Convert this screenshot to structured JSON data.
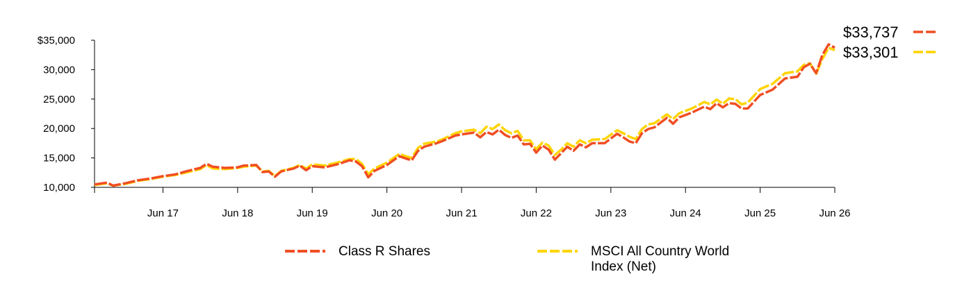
{
  "colors": {
    "series1": "#f04e23",
    "series2": "#ffd400",
    "axis": "#000000"
  },
  "chart_data": {
    "type": "line",
    "title": "",
    "xlabel": "",
    "ylabel": "",
    "ylim": [
      10000,
      35000
    ],
    "y_ticks": [
      {
        "value": 10000,
        "label": "10,000"
      },
      {
        "value": 15000,
        "label": "15,000"
      },
      {
        "value": 20000,
        "label": "20,000"
      },
      {
        "value": 25000,
        "label": "25,000"
      },
      {
        "value": 30000,
        "label": "30,000"
      },
      {
        "value": 35000,
        "label": "$35,000"
      }
    ],
    "x_range": [
      "2016-07",
      "2026-06"
    ],
    "x_ticks": [
      {
        "date": "2017-06",
        "label": "Jun 17"
      },
      {
        "date": "2018-06",
        "label": "Jun 18"
      },
      {
        "date": "2019-06",
        "label": "Jun 19"
      },
      {
        "date": "2020-06",
        "label": "Jun 20"
      },
      {
        "date": "2021-06",
        "label": "Jun 21"
      },
      {
        "date": "2022-06",
        "label": "Jun 22"
      },
      {
        "date": "2023-06",
        "label": "Jun 23"
      },
      {
        "date": "2024-06",
        "label": "Jun 24"
      },
      {
        "date": "2025-06",
        "label": "Jun 25"
      },
      {
        "date": "2026-06",
        "label": "Jun 26"
      }
    ],
    "series": [
      {
        "name": "Class R Shares",
        "color": "#f04e23",
        "end_label": "$33,737",
        "points": [
          [
            "2016-07",
            10500
          ],
          [
            "2016-09",
            10800
          ],
          [
            "2016-10",
            10300
          ],
          [
            "2016-12",
            10700
          ],
          [
            "2017-02",
            11200
          ],
          [
            "2017-04",
            11500
          ],
          [
            "2017-06",
            11900
          ],
          [
            "2017-08",
            12200
          ],
          [
            "2017-10",
            12800
          ],
          [
            "2017-12",
            13300
          ],
          [
            "2018-01",
            14000
          ],
          [
            "2018-02",
            13500
          ],
          [
            "2018-04",
            13300
          ],
          [
            "2018-06",
            13400
          ],
          [
            "2018-07",
            13700
          ],
          [
            "2018-09",
            13800
          ],
          [
            "2018-10",
            12600
          ],
          [
            "2018-11",
            12700
          ],
          [
            "2018-12",
            11800
          ],
          [
            "2019-01",
            12700
          ],
          [
            "2019-03",
            13200
          ],
          [
            "2019-04",
            13700
          ],
          [
            "2019-05",
            12900
          ],
          [
            "2019-06",
            13600
          ],
          [
            "2019-08",
            13400
          ],
          [
            "2019-10",
            13900
          ],
          [
            "2019-12",
            14600
          ],
          [
            "2020-01",
            14400
          ],
          [
            "2020-02",
            13600
          ],
          [
            "2020-03",
            11700
          ],
          [
            "2020-04",
            12800
          ],
          [
            "2020-06",
            13800
          ],
          [
            "2020-08",
            15300
          ],
          [
            "2020-09",
            14900
          ],
          [
            "2020-10",
            14600
          ],
          [
            "2020-11",
            16200
          ],
          [
            "2020-12",
            16900
          ],
          [
            "2021-02",
            17500
          ],
          [
            "2021-03",
            17900
          ],
          [
            "2021-05",
            18800
          ],
          [
            "2021-06",
            19000
          ],
          [
            "2021-08",
            19300
          ],
          [
            "2021-09",
            18500
          ],
          [
            "2021-10",
            19400
          ],
          [
            "2021-11",
            19000
          ],
          [
            "2021-12",
            19800
          ],
          [
            "2022-01",
            18900
          ],
          [
            "2022-02",
            18400
          ],
          [
            "2022-03",
            18800
          ],
          [
            "2022-04",
            17300
          ],
          [
            "2022-05",
            17400
          ],
          [
            "2022-06",
            15900
          ],
          [
            "2022-07",
            17100
          ],
          [
            "2022-08",
            16400
          ],
          [
            "2022-09",
            14700
          ],
          [
            "2022-10",
            15800
          ],
          [
            "2022-11",
            16900
          ],
          [
            "2022-12",
            16200
          ],
          [
            "2023-01",
            17300
          ],
          [
            "2023-02",
            16800
          ],
          [
            "2023-03",
            17500
          ],
          [
            "2023-05",
            17500
          ],
          [
            "2023-07",
            19100
          ],
          [
            "2023-08",
            18500
          ],
          [
            "2023-09",
            17800
          ],
          [
            "2023-10",
            17500
          ],
          [
            "2023-11",
            19200
          ],
          [
            "2023-12",
            19900
          ],
          [
            "2024-01",
            20200
          ],
          [
            "2024-03",
            21800
          ],
          [
            "2024-04",
            20800
          ],
          [
            "2024-05",
            21900
          ],
          [
            "2024-07",
            22700
          ],
          [
            "2024-09",
            23700
          ],
          [
            "2024-10",
            23300
          ],
          [
            "2024-11",
            24300
          ],
          [
            "2024-12",
            23600
          ],
          [
            "2025-01",
            24300
          ],
          [
            "2025-02",
            24200
          ],
          [
            "2025-03",
            23400
          ],
          [
            "2025-04",
            23400
          ],
          [
            "2025-06",
            25700
          ],
          [
            "2025-08",
            26600
          ],
          [
            "2025-10",
            28500
          ],
          [
            "2025-12",
            28800
          ],
          [
            "2026-01",
            30400
          ],
          [
            "2026-02",
            31000
          ],
          [
            "2026-03",
            29400
          ],
          [
            "2026-04",
            32500
          ],
          [
            "2026-05",
            34300
          ],
          [
            "2026-06",
            33737
          ]
        ]
      },
      {
        "name": "MSCI All Country World Index (Net)",
        "color": "#ffd400",
        "end_label": "$33,301",
        "points": [
          [
            "2016-07",
            10400
          ],
          [
            "2016-09",
            10700
          ],
          [
            "2016-10",
            10300
          ],
          [
            "2016-12",
            10600
          ],
          [
            "2017-02",
            11100
          ],
          [
            "2017-04",
            11400
          ],
          [
            "2017-06",
            11800
          ],
          [
            "2017-08",
            12100
          ],
          [
            "2017-10",
            12600
          ],
          [
            "2017-12",
            13100
          ],
          [
            "2018-01",
            13800
          ],
          [
            "2018-02",
            13200
          ],
          [
            "2018-04",
            13100
          ],
          [
            "2018-06",
            13300
          ],
          [
            "2018-07",
            13500
          ],
          [
            "2018-09",
            13700
          ],
          [
            "2018-10",
            12700
          ],
          [
            "2018-11",
            12800
          ],
          [
            "2018-12",
            11900
          ],
          [
            "2019-01",
            12800
          ],
          [
            "2019-03",
            13300
          ],
          [
            "2019-04",
            13800
          ],
          [
            "2019-05",
            13200
          ],
          [
            "2019-06",
            13900
          ],
          [
            "2019-08",
            13700
          ],
          [
            "2019-10",
            14200
          ],
          [
            "2019-12",
            14800
          ],
          [
            "2020-01",
            14800
          ],
          [
            "2020-02",
            14000
          ],
          [
            "2020-03",
            12200
          ],
          [
            "2020-04",
            13200
          ],
          [
            "2020-06",
            14200
          ],
          [
            "2020-08",
            15700
          ],
          [
            "2020-09",
            15300
          ],
          [
            "2020-10",
            15000
          ],
          [
            "2020-11",
            16700
          ],
          [
            "2020-12",
            17400
          ],
          [
            "2021-02",
            17800
          ],
          [
            "2021-03",
            18200
          ],
          [
            "2021-05",
            19200
          ],
          [
            "2021-06",
            19500
          ],
          [
            "2021-08",
            19800
          ],
          [
            "2021-09",
            19200
          ],
          [
            "2021-10",
            20300
          ],
          [
            "2021-11",
            19900
          ],
          [
            "2021-12",
            20700
          ],
          [
            "2022-01",
            19700
          ],
          [
            "2022-02",
            19200
          ],
          [
            "2022-03",
            19600
          ],
          [
            "2022-04",
            18000
          ],
          [
            "2022-05",
            18000
          ],
          [
            "2022-06",
            16500
          ],
          [
            "2022-07",
            17600
          ],
          [
            "2022-08",
            17100
          ],
          [
            "2022-09",
            15500
          ],
          [
            "2022-10",
            16400
          ],
          [
            "2022-11",
            17500
          ],
          [
            "2022-12",
            16900
          ],
          [
            "2023-01",
            18000
          ],
          [
            "2023-02",
            17500
          ],
          [
            "2023-03",
            18100
          ],
          [
            "2023-05",
            18200
          ],
          [
            "2023-07",
            19700
          ],
          [
            "2023-08",
            19200
          ],
          [
            "2023-09",
            18600
          ],
          [
            "2023-10",
            18200
          ],
          [
            "2023-11",
            19900
          ],
          [
            "2023-12",
            20700
          ],
          [
            "2024-01",
            20900
          ],
          [
            "2024-03",
            22400
          ],
          [
            "2024-04",
            21600
          ],
          [
            "2024-05",
            22600
          ],
          [
            "2024-07",
            23400
          ],
          [
            "2024-09",
            24500
          ],
          [
            "2024-10",
            24100
          ],
          [
            "2024-11",
            24900
          ],
          [
            "2024-12",
            24200
          ],
          [
            "2025-01",
            25100
          ],
          [
            "2025-02",
            25000
          ],
          [
            "2025-03",
            24100
          ],
          [
            "2025-04",
            24400
          ],
          [
            "2025-06",
            26700
          ],
          [
            "2025-08",
            27600
          ],
          [
            "2025-10",
            29400
          ],
          [
            "2025-12",
            29700
          ],
          [
            "2026-01",
            30800
          ],
          [
            "2026-02",
            31100
          ],
          [
            "2026-03",
            29300
          ],
          [
            "2026-04",
            31800
          ],
          [
            "2026-05",
            33700
          ],
          [
            "2026-06",
            33301
          ]
        ]
      }
    ],
    "legend": {
      "placement": "bottom"
    }
  }
}
